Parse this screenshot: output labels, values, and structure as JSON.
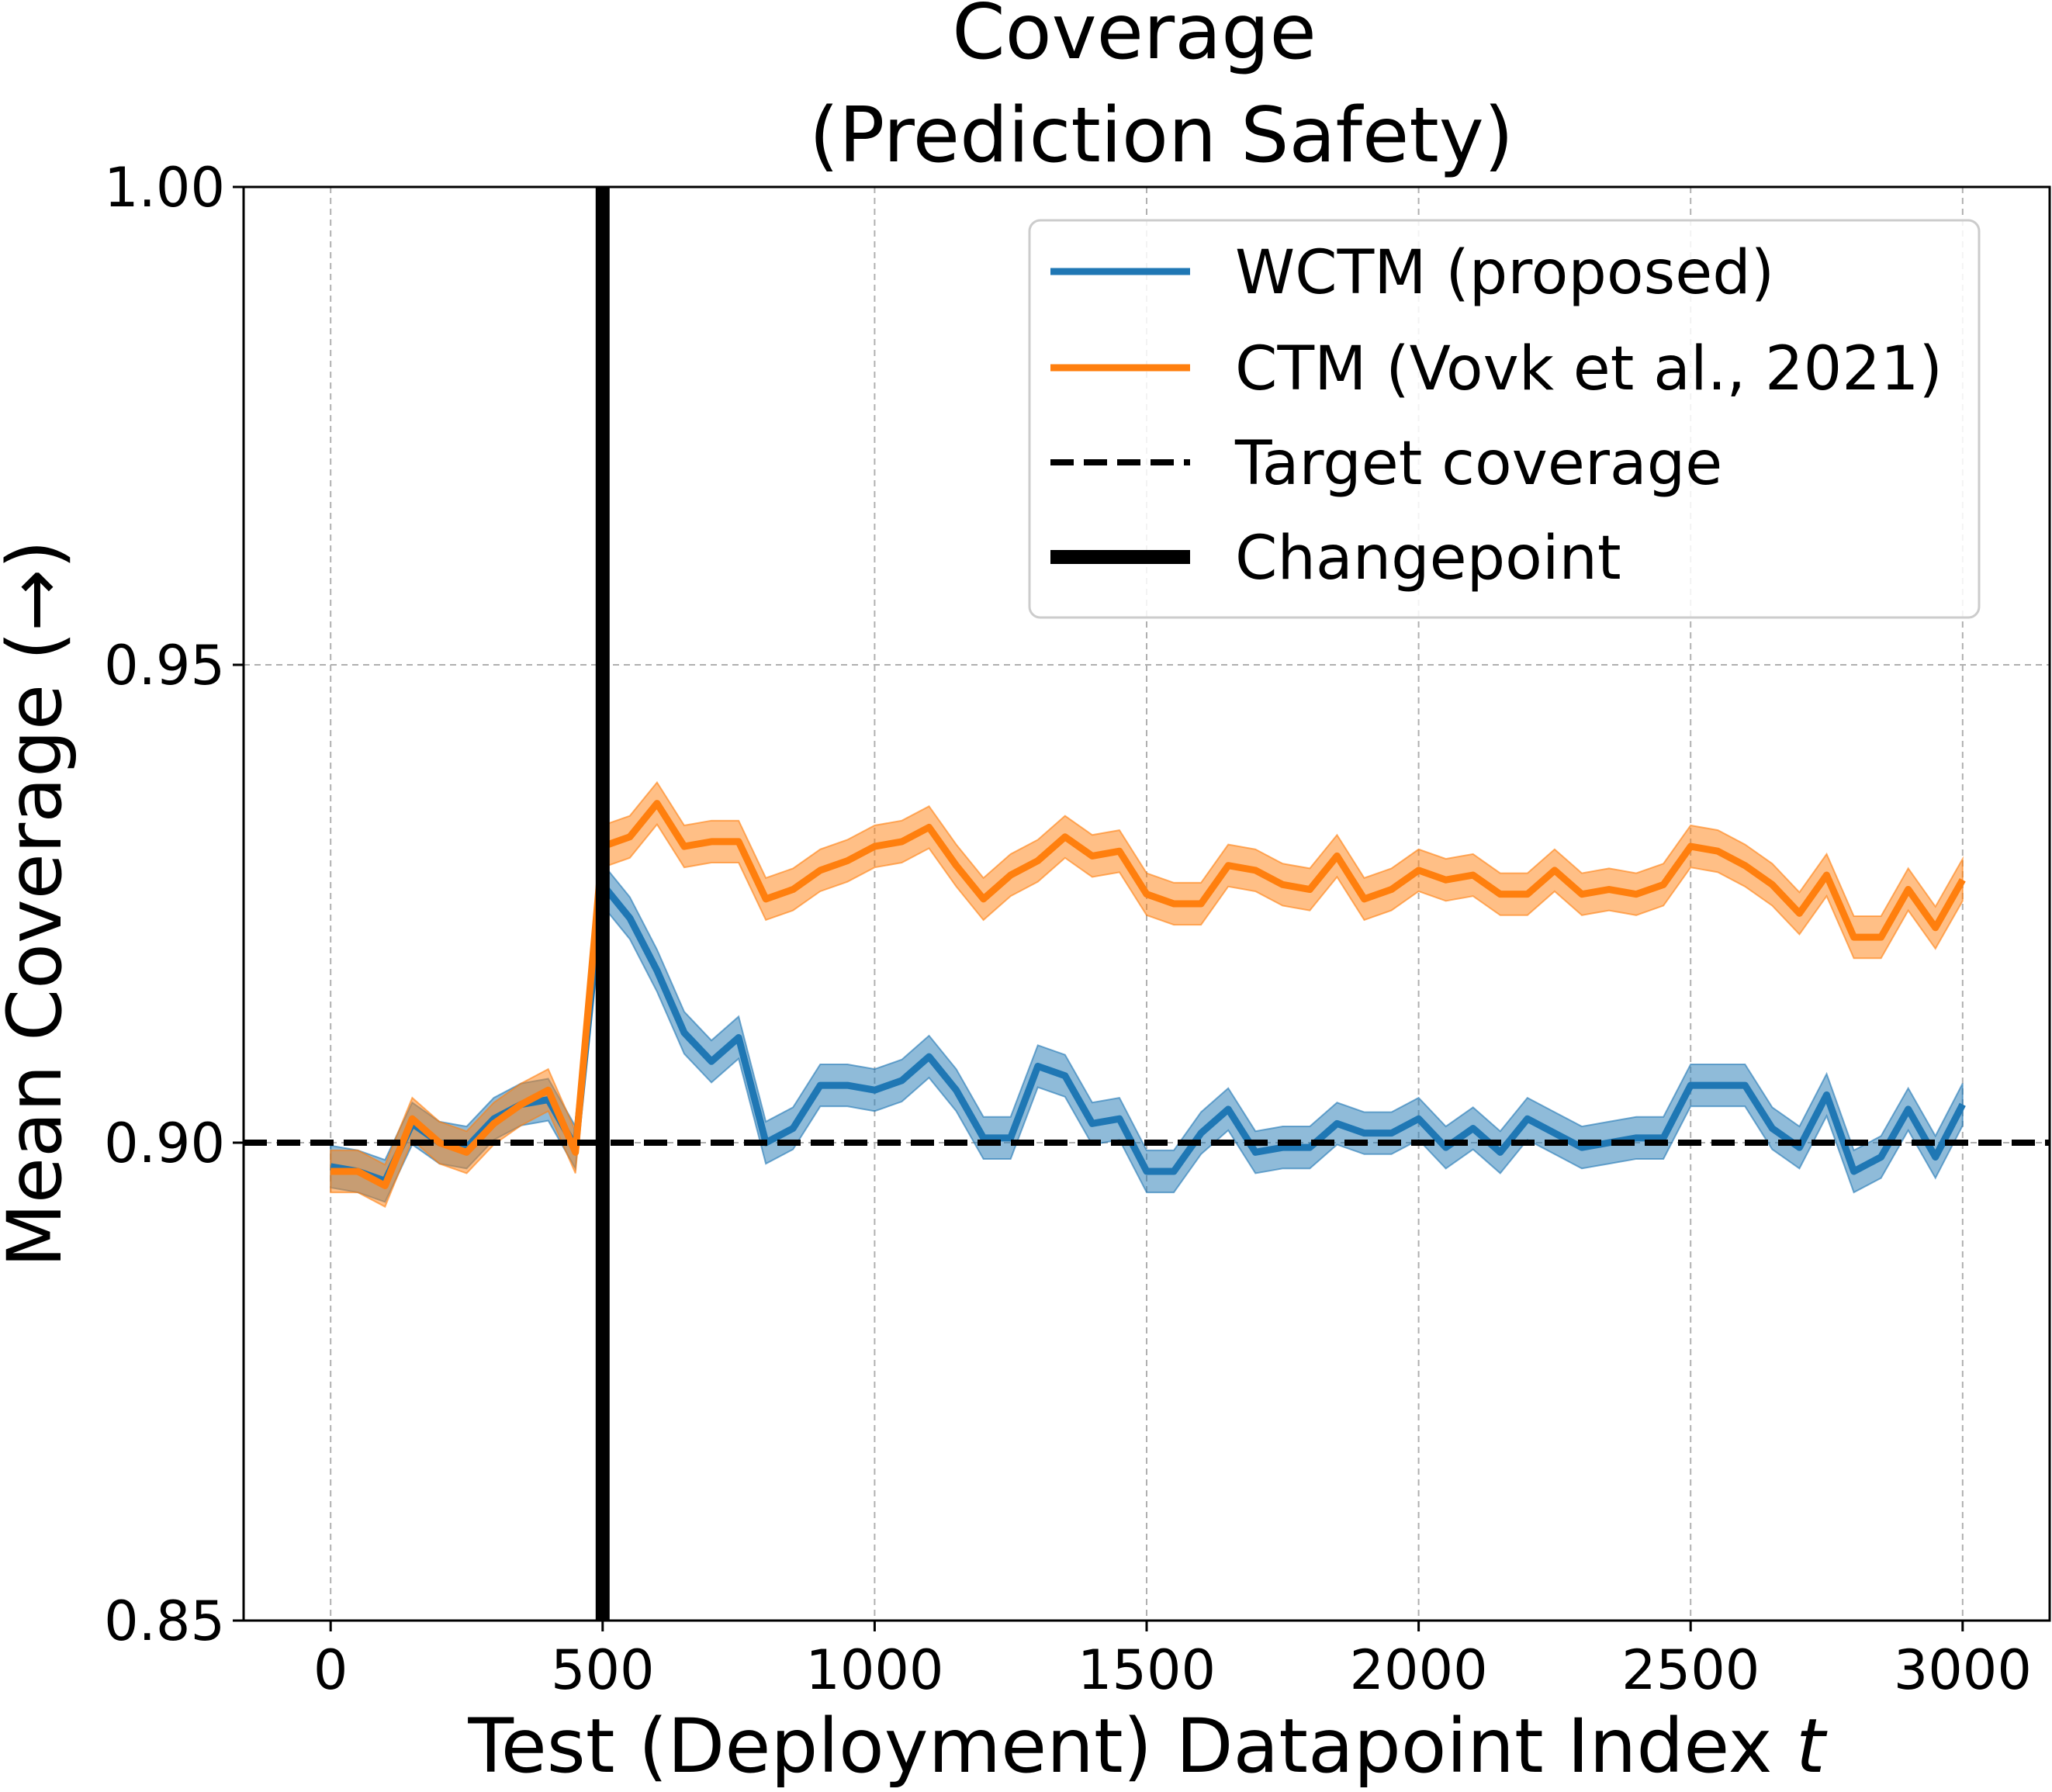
{
  "chart_data": {
    "type": "line",
    "title": "Coverage",
    "subtitle": "(Prediction Safety)",
    "xlabel": "Test (Deployment) Datapoint Index ",
    "xlabel_var": "t",
    "ylabel": "Mean Coverage (→)",
    "xlim": [
      -160,
      3160
    ],
    "ylim": [
      0.85,
      1.0
    ],
    "xticks": [
      0,
      500,
      1000,
      1500,
      2000,
      2500,
      3000
    ],
    "xtick_labels": [
      "0",
      "500",
      "1000",
      "1500",
      "2000",
      "2500",
      "3000"
    ],
    "yticks": [
      0.85,
      0.9,
      0.95,
      1.0
    ],
    "ytick_labels": [
      "0.85",
      "0.90",
      "0.95",
      "1.00"
    ],
    "grid": true,
    "legend_position": "top-right",
    "x": [
      0,
      50,
      100,
      150,
      200,
      250,
      300,
      350,
      400,
      450,
      500,
      550,
      600,
      650,
      700,
      750,
      800,
      850,
      900,
      950,
      1000,
      1050,
      1100,
      1150,
      1200,
      1250,
      1300,
      1350,
      1400,
      1450,
      1500,
      1550,
      1600,
      1650,
      1700,
      1750,
      1800,
      1850,
      1900,
      1950,
      2000,
      2050,
      2100,
      2150,
      2200,
      2250,
      2300,
      2350,
      2400,
      2450,
      2500,
      2550,
      2600,
      2650,
      2700,
      2750,
      2800,
      2850,
      2900,
      2950,
      3000
    ],
    "series": [
      {
        "name": "WCTM (proposed)",
        "color": "#1f77b4",
        "values": [
          0.8975,
          0.897,
          0.896,
          0.902,
          0.9,
          0.8995,
          0.9025,
          0.904,
          0.9045,
          0.8995,
          0.927,
          0.9235,
          0.918,
          0.9115,
          0.9085,
          0.911,
          0.9,
          0.9015,
          0.906,
          0.906,
          0.9055,
          0.9065,
          0.909,
          0.9055,
          0.9005,
          0.9005,
          0.908,
          0.907,
          0.902,
          0.9025,
          0.897,
          0.897,
          0.901,
          0.9035,
          0.899,
          0.8995,
          0.8995,
          0.902,
          0.901,
          0.901,
          0.9025,
          0.8995,
          0.9015,
          0.899,
          0.9025,
          0.901,
          0.8995,
          0.9,
          0.9005,
          0.9005,
          0.906,
          0.906,
          0.906,
          0.9015,
          0.8995,
          0.905,
          0.897,
          0.8985,
          0.9035,
          0.8985,
          0.904
        ],
        "band": 0.0022
      },
      {
        "name": "CTM (Vovk et al., 2021)",
        "color": "#ff7f0e",
        "values": [
          0.897,
          0.897,
          0.8955,
          0.9025,
          0.9,
          0.899,
          0.902,
          0.904,
          0.9055,
          0.899,
          0.931,
          0.932,
          0.9355,
          0.931,
          0.9315,
          0.9315,
          0.9255,
          0.9265,
          0.9285,
          0.9295,
          0.931,
          0.9315,
          0.933,
          0.929,
          0.9255,
          0.928,
          0.9295,
          0.932,
          0.93,
          0.9305,
          0.926,
          0.925,
          0.925,
          0.929,
          0.9285,
          0.927,
          0.9265,
          0.93,
          0.9255,
          0.9265,
          0.9285,
          0.9275,
          0.928,
          0.926,
          0.926,
          0.9285,
          0.926,
          0.9265,
          0.926,
          0.927,
          0.931,
          0.9305,
          0.929,
          0.927,
          0.924,
          0.928,
          0.9215,
          0.9215,
          0.9265,
          0.9225,
          0.9275
        ],
        "band": 0.0022
      }
    ],
    "reference_lines": [
      {
        "name": "Target coverage",
        "axis": "y",
        "value": 0.9,
        "style": "dashed",
        "color": "#000000"
      },
      {
        "name": "Changepoint",
        "axis": "x",
        "value": 500,
        "style": "solid",
        "color": "#000000"
      }
    ]
  }
}
